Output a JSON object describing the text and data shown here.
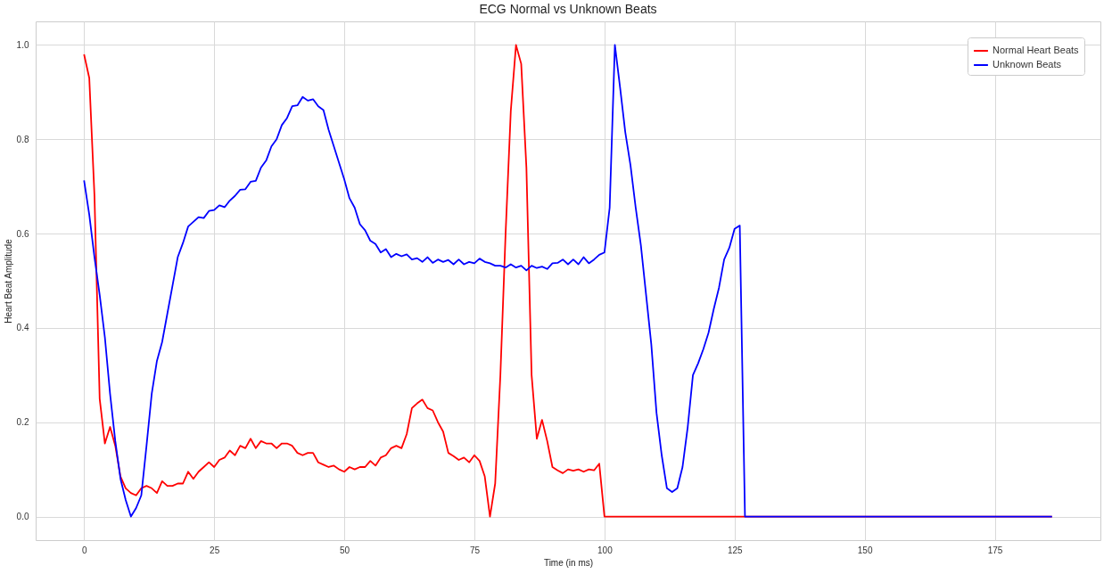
{
  "chart_data": {
    "type": "line",
    "title": "ECG Normal vs Unknown Beats",
    "xlabel": "Time (in ms)",
    "ylabel": "Heart Beat Amplitude",
    "xlim": [
      -9.3,
      195.3
    ],
    "xticks": [
      0,
      25,
      50,
      75,
      100,
      125,
      150,
      175
    ],
    "ylim": [
      -0.05,
      1.05
    ],
    "yticks": [
      {
        "value": 0,
        "label": "0.0"
      },
      0.2,
      0.4,
      0.6,
      0.8,
      {
        "value": 1,
        "label": "1.0"
      }
    ],
    "grid": true,
    "legend": "top right",
    "series": [
      {
        "name": "Normal Heart Beats",
        "color": "#ff0000",
        "x": [
          0,
          1,
          2,
          3,
          4,
          5,
          6,
          7,
          8,
          9,
          10,
          11,
          12,
          13,
          14,
          15,
          16,
          17,
          18,
          19,
          20,
          21,
          22,
          23,
          24,
          25,
          26,
          27,
          28,
          29,
          30,
          31,
          32,
          33,
          34,
          35,
          36,
          37,
          38,
          39,
          40,
          41,
          42,
          43,
          44,
          45,
          46,
          47,
          48,
          49,
          50,
          51,
          52,
          53,
          54,
          55,
          56,
          57,
          58,
          59,
          60,
          61,
          62,
          63,
          64,
          65,
          66,
          67,
          68,
          69,
          70,
          71,
          72,
          73,
          74,
          75,
          76,
          77,
          78,
          79,
          80,
          81,
          82,
          83,
          84,
          85,
          86,
          87,
          88,
          89,
          90,
          91,
          92,
          93,
          94,
          95,
          96,
          97,
          98,
          99,
          100,
          186
        ],
        "values": [
          0.98,
          0.93,
          0.68,
          0.25,
          0.155,
          0.19,
          0.15,
          0.085,
          0.06,
          0.05,
          0.045,
          0.06,
          0.065,
          0.06,
          0.05,
          0.075,
          0.065,
          0.065,
          0.07,
          0.07,
          0.095,
          0.08,
          0.095,
          0.105,
          0.115,
          0.105,
          0.12,
          0.125,
          0.14,
          0.13,
          0.15,
          0.145,
          0.165,
          0.145,
          0.16,
          0.155,
          0.155,
          0.145,
          0.155,
          0.155,
          0.15,
          0.135,
          0.13,
          0.135,
          0.135,
          0.115,
          0.11,
          0.105,
          0.108,
          0.1,
          0.095,
          0.105,
          0.1,
          0.105,
          0.105,
          0.118,
          0.108,
          0.125,
          0.13,
          0.145,
          0.15,
          0.145,
          0.175,
          0.23,
          0.24,
          0.248,
          0.23,
          0.225,
          0.2,
          0.18,
          0.135,
          0.128,
          0.12,
          0.125,
          0.115,
          0.13,
          0.118,
          0.085,
          0.0,
          0.07,
          0.3,
          0.6,
          0.86,
          1.0,
          0.96,
          0.74,
          0.3,
          0.165,
          0.205,
          0.16,
          0.105,
          0.098,
          0.092,
          0.1,
          0.097,
          0.1,
          0.095,
          0.1,
          0.098,
          0.112,
          0.0,
          0.0
        ]
      },
      {
        "name": "Unknown Beats",
        "color": "#0000ff",
        "x": [
          0,
          1,
          2,
          3,
          4,
          5,
          6,
          7,
          8,
          9,
          10,
          11,
          12,
          13,
          14,
          15,
          16,
          17,
          18,
          19,
          20,
          21,
          22,
          23,
          24,
          25,
          26,
          27,
          28,
          29,
          30,
          31,
          32,
          33,
          34,
          35,
          36,
          37,
          38,
          39,
          40,
          41,
          42,
          43,
          44,
          45,
          46,
          47,
          48,
          49,
          50,
          51,
          52,
          53,
          54,
          55,
          56,
          57,
          58,
          59,
          60,
          61,
          62,
          63,
          64,
          65,
          66,
          67,
          68,
          69,
          70,
          71,
          72,
          73,
          74,
          75,
          76,
          77,
          78,
          79,
          80,
          81,
          82,
          83,
          84,
          85,
          86,
          87,
          88,
          89,
          90,
          91,
          92,
          93,
          94,
          95,
          96,
          97,
          98,
          99,
          100,
          101,
          102,
          103,
          104,
          105,
          106,
          107,
          108,
          109,
          110,
          111,
          112,
          113,
          114,
          115,
          116,
          117,
          118,
          119,
          120,
          121,
          122,
          123,
          124,
          125,
          126,
          127,
          186
        ],
        "values": [
          0.713,
          0.64,
          0.55,
          0.47,
          0.38,
          0.26,
          0.16,
          0.08,
          0.035,
          0.0,
          0.018,
          0.045,
          0.15,
          0.26,
          0.33,
          0.37,
          0.43,
          0.49,
          0.55,
          0.58,
          0.615,
          0.625,
          0.635,
          0.633,
          0.648,
          0.65,
          0.66,
          0.656,
          0.67,
          0.68,
          0.693,
          0.694,
          0.71,
          0.712,
          0.74,
          0.755,
          0.785,
          0.8,
          0.83,
          0.845,
          0.87,
          0.872,
          0.89,
          0.882,
          0.885,
          0.87,
          0.862,
          0.82,
          0.785,
          0.75,
          0.715,
          0.675,
          0.655,
          0.62,
          0.607,
          0.585,
          0.578,
          0.56,
          0.567,
          0.55,
          0.557,
          0.552,
          0.556,
          0.545,
          0.548,
          0.54,
          0.55,
          0.538,
          0.545,
          0.54,
          0.544,
          0.535,
          0.545,
          0.535,
          0.54,
          0.537,
          0.547,
          0.54,
          0.537,
          0.532,
          0.532,
          0.528,
          0.535,
          0.528,
          0.532,
          0.522,
          0.532,
          0.527,
          0.53,
          0.525,
          0.537,
          0.538,
          0.545,
          0.535,
          0.545,
          0.535,
          0.55,
          0.537,
          0.545,
          0.555,
          0.56,
          0.655,
          1.0,
          0.91,
          0.815,
          0.745,
          0.655,
          0.575,
          0.47,
          0.365,
          0.22,
          0.13,
          0.06,
          0.052,
          0.06,
          0.105,
          0.19,
          0.3,
          0.325,
          0.355,
          0.39,
          0.44,
          0.485,
          0.545,
          0.57,
          0.61,
          0.617,
          0.0,
          0.0
        ]
      }
    ]
  }
}
